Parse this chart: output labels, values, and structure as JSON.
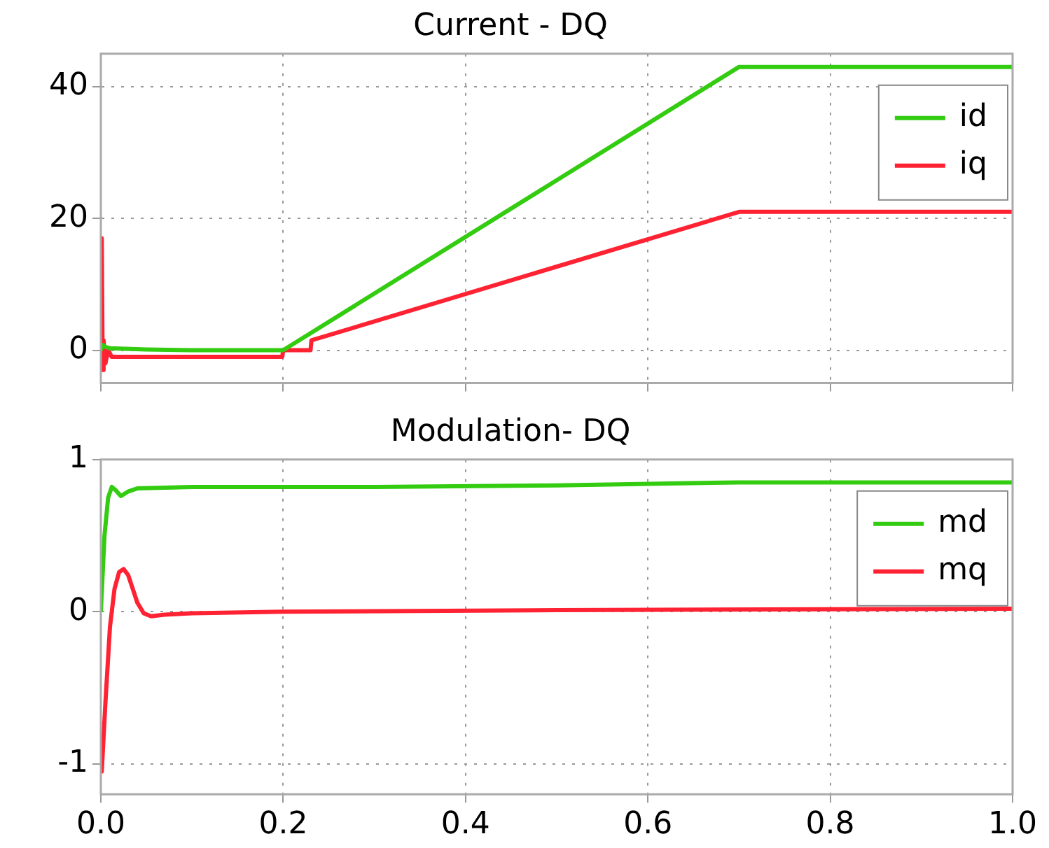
{
  "chart_data": [
    {
      "type": "line",
      "title": "Current - DQ",
      "legend": "top right",
      "grid": true,
      "tick_labels": "y",
      "xlim": [
        0,
        1
      ],
      "xticks": [
        {
          "value": 0,
          "label": null
        },
        {
          "value": 0.2,
          "label": null
        },
        {
          "value": 0.4,
          "label": null
        },
        {
          "value": 0.6,
          "label": null
        },
        {
          "value": 0.8,
          "label": null
        },
        {
          "value": 1,
          "label": null
        }
      ],
      "ylim": [
        -5,
        45
      ],
      "yticks": [
        0,
        20,
        40
      ],
      "series": [
        {
          "name": "id",
          "color": "#33cc11",
          "x": [
            0,
            0.002,
            0.005,
            0.01,
            0.05,
            0.1,
            0.15,
            0.2,
            0.7,
            0.8,
            1.0
          ],
          "values": [
            0,
            0.8,
            0.5,
            0.3,
            0.1,
            0,
            0,
            0,
            43,
            43,
            43
          ]
        },
        {
          "name": "iq",
          "color": "#ff2233",
          "x": [
            0,
            0.001,
            0.002,
            0.003,
            0.005,
            0.008,
            0.012,
            0.05,
            0.1,
            0.15,
            0.199,
            0.2,
            0.23,
            0.231,
            0.7,
            0.8,
            0.9,
            1.0
          ],
          "values": [
            0,
            17,
            -3,
            1.5,
            -2,
            0,
            -1,
            -1,
            -1,
            -1,
            -1,
            0,
            0,
            1.5,
            21,
            21,
            21,
            21
          ]
        }
      ]
    },
    {
      "type": "line",
      "title": "Modulation- DQ",
      "legend": "top right",
      "grid": true,
      "xlim": [
        0,
        1
      ],
      "xticks": [
        {
          "value": 0,
          "label": "0.0"
        },
        {
          "value": 0.2,
          "label": "0.2"
        },
        {
          "value": 0.4,
          "label": "0.4"
        },
        {
          "value": 0.6,
          "label": "0.6"
        },
        {
          "value": 0.8,
          "label": "0.8"
        },
        {
          "value": 1,
          "label": "1.0"
        }
      ],
      "ylim": [
        -1.2,
        1
      ],
      "yticks": [
        -1,
        0,
        1
      ],
      "series": [
        {
          "name": "md",
          "color": "#33cc11",
          "x": [
            0,
            0.004,
            0.008,
            0.012,
            0.016,
            0.022,
            0.03,
            0.04,
            0.1,
            0.3,
            0.5,
            0.7,
            1.0
          ],
          "values": [
            0,
            0.5,
            0.75,
            0.82,
            0.8,
            0.76,
            0.79,
            0.81,
            0.82,
            0.82,
            0.83,
            0.85,
            0.85
          ]
        },
        {
          "name": "mq",
          "color": "#ff2233",
          "x": [
            0,
            0.001,
            0.005,
            0.01,
            0.015,
            0.02,
            0.025,
            0.03,
            0.035,
            0.04,
            0.047,
            0.055,
            0.07,
            0.1,
            0.2,
            0.5,
            1.0
          ],
          "values": [
            -1,
            -1.05,
            -0.6,
            -0.1,
            0.15,
            0.26,
            0.28,
            0.24,
            0.15,
            0.06,
            -0.01,
            -0.03,
            -0.02,
            -0.01,
            0,
            0.01,
            0.02
          ]
        }
      ]
    }
  ]
}
